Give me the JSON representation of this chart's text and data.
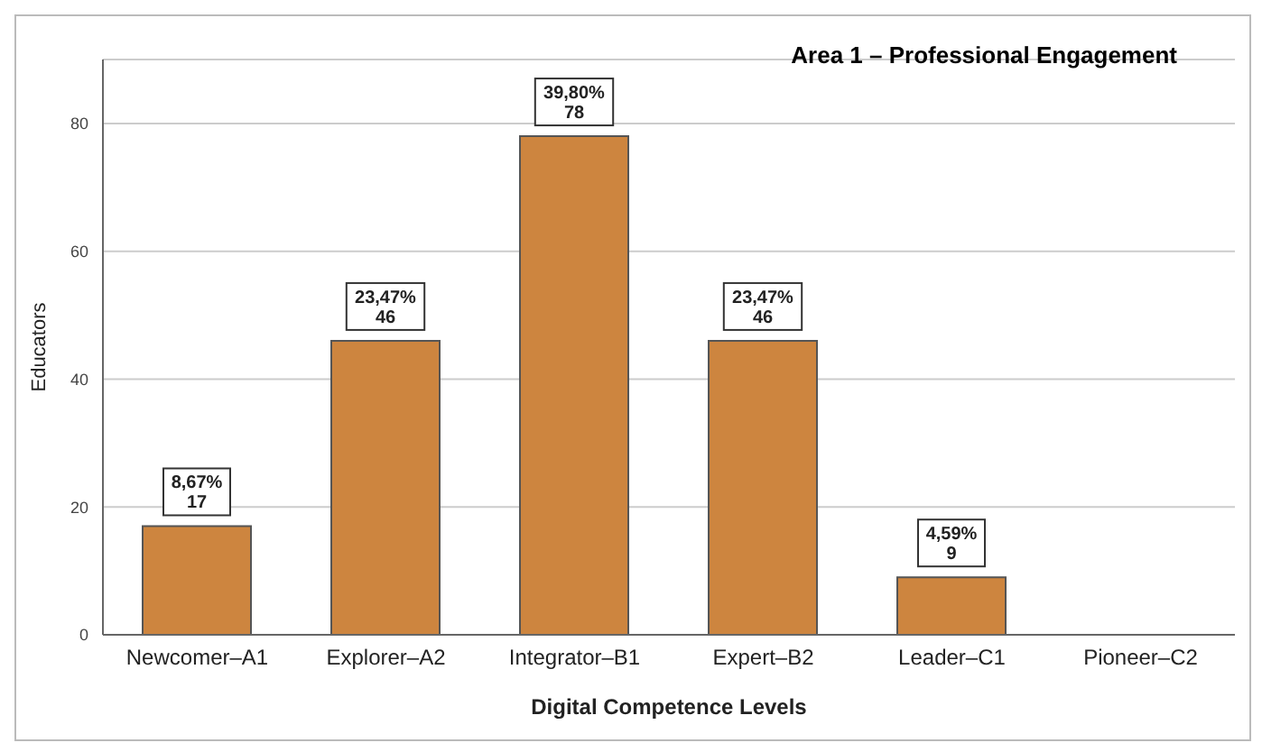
{
  "chart_data": {
    "type": "bar",
    "title": "Area 1 – Professional Engagement",
    "xlabel": "Digital Competence Levels",
    "ylabel": "Educators",
    "categories": [
      "Newcomer–A1",
      "Explorer–A2",
      "Integrator–B1",
      "Expert–B2",
      "Leader–C1",
      "Pioneer–C2"
    ],
    "values": [
      17,
      46,
      78,
      46,
      9,
      0
    ],
    "value_labels": [
      "8,67%\n17",
      "23,47%\n46",
      "39,80%\n78",
      "23,47%\n46",
      "4,59%\n9",
      null
    ],
    "color": "#cd853f",
    "ylim": [
      0,
      90
    ],
    "yticks": [
      0,
      20,
      40,
      60,
      80
    ],
    "grid": "y"
  }
}
